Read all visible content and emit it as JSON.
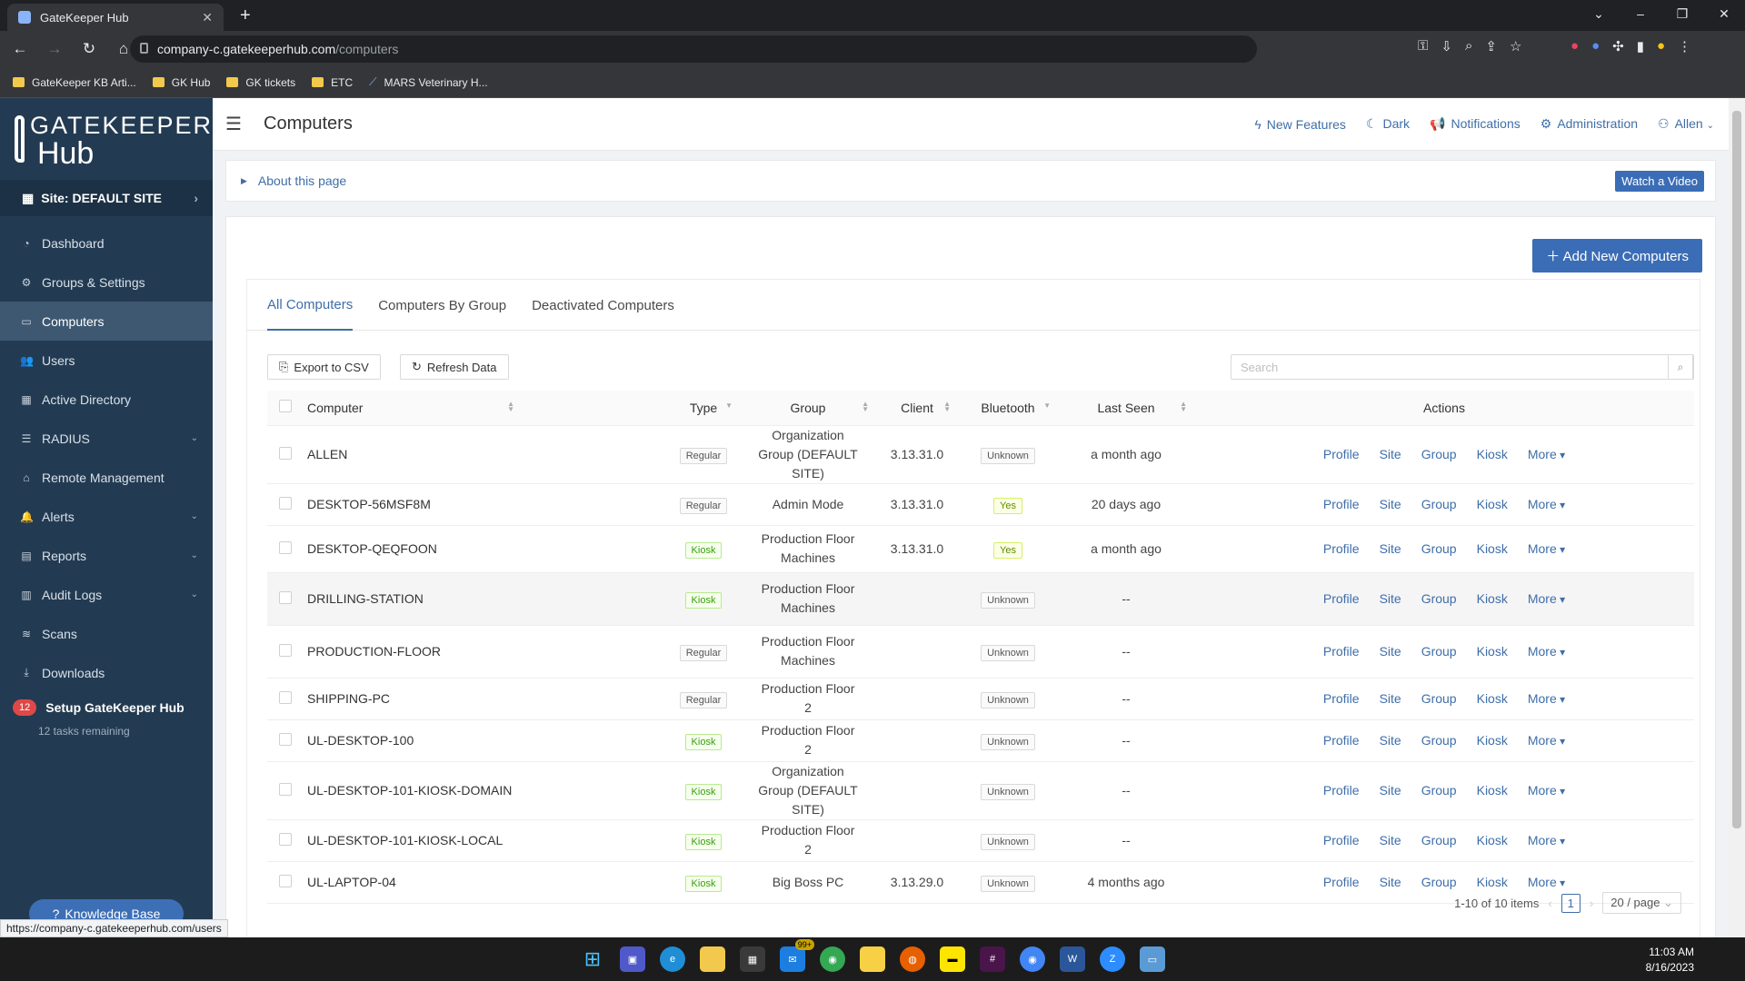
{
  "browser": {
    "tab_title": "GateKeeper Hub",
    "url_host": "company-c.gatekeeperhub.com",
    "url_path": "/computers",
    "bookmarks": [
      "GateKeeper KB Arti...",
      "GK Hub",
      "GK tickets",
      "ETC",
      "MARS Veterinary H..."
    ],
    "status_url": "https://company-c.gatekeeperhub.com/users"
  },
  "sidebar": {
    "logo_line1": "GATEKEEPER",
    "logo_line2": "Hub",
    "site_label": "Site: DEFAULT SITE",
    "items": [
      {
        "label": "Dashboard",
        "icon": "gauge-icon"
      },
      {
        "label": "Groups & Settings",
        "icon": "gears-icon"
      },
      {
        "label": "Computers",
        "icon": "laptop-icon"
      },
      {
        "label": "Users",
        "icon": "users-icon"
      },
      {
        "label": "Active Directory",
        "icon": "grid-icon"
      },
      {
        "label": "RADIUS",
        "icon": "server-icon"
      },
      {
        "label": "Remote Management",
        "icon": "bank-icon"
      },
      {
        "label": "Alerts",
        "icon": "bell-icon"
      },
      {
        "label": "Reports",
        "icon": "report-icon"
      },
      {
        "label": "Audit Logs",
        "icon": "table-icon"
      },
      {
        "label": "Scans",
        "icon": "wifi-icon"
      },
      {
        "label": "Downloads",
        "icon": "download-icon"
      }
    ],
    "setup_badge": "12",
    "setup_title": "Setup GateKeeper Hub",
    "setup_sub": "12 tasks remaining",
    "kb_label": "Knowledge Base"
  },
  "header": {
    "title": "Computers",
    "new_features": "New Features",
    "dark": "Dark",
    "notifications": "Notifications",
    "administration": "Administration",
    "user": "Allen"
  },
  "about": {
    "label": "About this page",
    "video_button": "Watch a Video"
  },
  "add_button": "Add New Computers",
  "tabs": [
    "All Computers",
    "Computers By Group",
    "Deactivated Computers"
  ],
  "toolbar": {
    "export": "Export to CSV",
    "refresh": "Refresh Data",
    "search_placeholder": "Search"
  },
  "table": {
    "headers": {
      "computer": "Computer",
      "type": "Type",
      "group": "Group",
      "client": "Client",
      "bluetooth": "Bluetooth",
      "last_seen": "Last Seen",
      "actions": "Actions"
    },
    "action_labels": {
      "profile": "Profile",
      "site": "Site",
      "group": "Group",
      "kiosk": "Kiosk",
      "more": "More"
    },
    "rows": [
      {
        "name": "ALLEN",
        "type": "Regular",
        "group": "Organization Group (DEFAULT SITE)",
        "client": "3.13.31.0",
        "bluetooth": "Unknown",
        "last_seen": "a month ago"
      },
      {
        "name": "DESKTOP-56MSF8M",
        "type": "Regular",
        "group": "Admin Mode",
        "client": "3.13.31.0",
        "bluetooth": "Yes",
        "last_seen": "20 days ago"
      },
      {
        "name": "DESKTOP-QEQFOON",
        "type": "Kiosk",
        "group": "Production Floor Machines",
        "client": "3.13.31.0",
        "bluetooth": "Yes",
        "last_seen": "a month ago"
      },
      {
        "name": "DRILLING-STATION",
        "type": "Kiosk",
        "group": "Production Floor Machines",
        "client": "",
        "bluetooth": "Unknown",
        "last_seen": "--"
      },
      {
        "name": "PRODUCTION-FLOOR",
        "type": "Regular",
        "group": "Production Floor Machines",
        "client": "",
        "bluetooth": "Unknown",
        "last_seen": "--"
      },
      {
        "name": "SHIPPING-PC",
        "type": "Regular",
        "group": "Production Floor 2",
        "client": "",
        "bluetooth": "Unknown",
        "last_seen": "--"
      },
      {
        "name": "UL-DESKTOP-100",
        "type": "Kiosk",
        "group": "Production Floor 2",
        "client": "",
        "bluetooth": "Unknown",
        "last_seen": "--"
      },
      {
        "name": "UL-DESKTOP-101-KIOSK-DOMAIN",
        "type": "Kiosk",
        "group": "Organization Group (DEFAULT SITE)",
        "client": "",
        "bluetooth": "Unknown",
        "last_seen": "--"
      },
      {
        "name": "UL-DESKTOP-101-KIOSK-LOCAL",
        "type": "Kiosk",
        "group": "Production Floor 2",
        "client": "",
        "bluetooth": "Unknown",
        "last_seen": "--"
      },
      {
        "name": "UL-LAPTOP-04",
        "type": "Kiosk",
        "group": "Big Boss PC",
        "client": "3.13.29.0",
        "bluetooth": "Unknown",
        "last_seen": "4 months ago"
      }
    ]
  },
  "pagination": {
    "summary": "1-10 of 10 items",
    "page": "1",
    "page_size": "20 / page"
  },
  "taskbar": {
    "time": "11:03 AM",
    "date": "8/16/2023",
    "mail_badge": "99+"
  }
}
